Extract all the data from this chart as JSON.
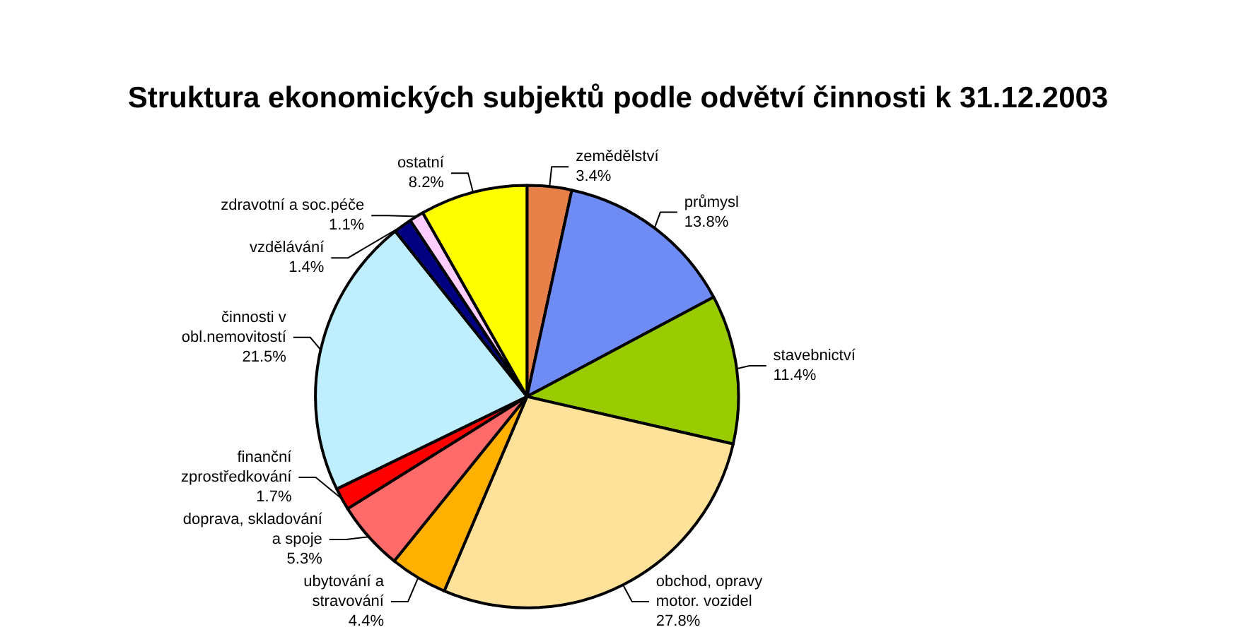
{
  "chart_data": {
    "type": "pie",
    "title": "Struktura ekonomických subjektů podle odvětví činnosti k 31.12.2003",
    "categories": [
      "zemědělství",
      "průmysl",
      "stavebnictví",
      "obchod, opravy\nmotor. vozidel",
      "ubytování a\nstravování",
      "doprava, skladování\na spoje",
      "finanční\nzprostředkování",
      "činnosti v\nobl.nemovitostí",
      "vzdělávání",
      "zdravotní a soc.péče",
      "ostatní"
    ],
    "values": [
      3.4,
      13.8,
      11.4,
      27.8,
      4.4,
      5.3,
      1.7,
      21.5,
      1.4,
      1.1,
      8.2
    ],
    "value_labels": [
      "3.4%",
      "13.8%",
      "11.4%",
      "27.8%",
      "4.4%",
      "5.3%",
      "1.7%",
      "21.5%",
      "1.4%",
      "1.1%",
      "8.2%"
    ],
    "colors": [
      "#e8804a",
      "#6f8cf5",
      "#99cc00",
      "#ffe29a",
      "#ffb000",
      "#ff6a6a",
      "#ff0000",
      "#bfeeff",
      "#000080",
      "#ffccff",
      "#ffff00"
    ],
    "legend": false
  }
}
